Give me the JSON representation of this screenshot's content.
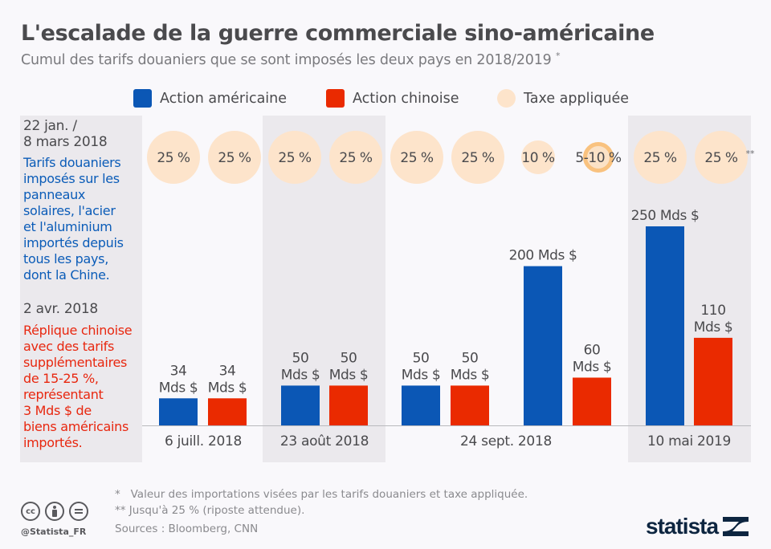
{
  "title": "L'escalade de la guerre commerciale sino-américaine",
  "subtitle": "Cumul des tarifs douaniers que se sont imposés les deux pays en 2018/2019",
  "subtitle_mark": "*",
  "legend": [
    {
      "label": "Action américaine",
      "color": "#0b57b5",
      "icon": "square"
    },
    {
      "label": "Action chinoise",
      "color": "#ea2a00",
      "icon": "square"
    },
    {
      "label": "Taxe appliquée",
      "color": "#fde4cb",
      "icon": "circle"
    }
  ],
  "side_notes": {
    "first_date": "22 jan. /\n8 mars 2018",
    "first_text": "Tarifs douaniers\nimposés sur les\npanneaux\nsolaires, l'acier\net l'aluminium\nimportés depuis\ntous les pays,\ndont la Chine.",
    "second_date": "2 avr. 2018",
    "second_text": "Réplique chinoise\navec des tarifs\nsupplémentaires\nde 15-25 %,\nreprésentant\n3 Mds $ de\nbiens américains\nimportés."
  },
  "chart_data": {
    "type": "bar",
    "title": "L'escalade de la guerre commerciale sino-américaine",
    "xlabel": "",
    "ylabel": "Valeur des importations visées (Mds $)",
    "unit": "Mds $",
    "categories": [
      "6 juill. 2018",
      "23 août 2018",
      "24 sept. 2018",
      "24 sept. 2018",
      "10 mai 2019"
    ],
    "date_labels": [
      "6 juill. 2018",
      "23 août 2018",
      "24 sept. 2018",
      "10 mai 2019"
    ],
    "series": [
      {
        "name": "Action américaine",
        "color": "#0b57b5",
        "values": [
          34,
          50,
          50,
          200,
          250
        ],
        "labels": [
          "34\nMds $",
          "50\nMds $",
          "50\nMds $",
          "200 Mds $",
          "250 Mds $"
        ]
      },
      {
        "name": "Action chinoise",
        "color": "#ea2a00",
        "values": [
          34,
          50,
          50,
          60,
          110
        ],
        "labels": [
          "34\nMds $",
          "50\nMds $",
          "50\nMds $",
          "60\nMds $",
          "110\nMds $"
        ]
      }
    ],
    "tax_applied": [
      {
        "label": "25 %",
        "value": 25,
        "style": "full"
      },
      {
        "label": "25 %",
        "value": 25,
        "style": "full"
      },
      {
        "label": "25 %",
        "value": 25,
        "style": "full"
      },
      {
        "label": "25 %",
        "value": 25,
        "style": "full"
      },
      {
        "label": "25 %",
        "value": 25,
        "style": "full"
      },
      {
        "label": "25 %",
        "value": 25,
        "style": "full"
      },
      {
        "label": "10 %",
        "value": 10,
        "style": "full"
      },
      {
        "label": "5-10 %",
        "value": 10,
        "style": "ring"
      },
      {
        "label": "25 %",
        "value": 25,
        "style": "full"
      },
      {
        "label": "25 %",
        "value": 25,
        "style": "full",
        "mark": "**"
      }
    ],
    "ylim": [
      0,
      250
    ],
    "grid": false,
    "legend_position": "top"
  },
  "footnotes": "*   Valeur des importations visées par les tarifs douaniers et taxe appliquée.\n** Jusqu'à 25 % (riposte attendue).",
  "sources": "Sources : Bloomberg, CNN",
  "handle": "@Statista_FR",
  "cc_icons": [
    "cc-icon",
    "by-icon",
    "nd-icon"
  ],
  "brand": "statista"
}
